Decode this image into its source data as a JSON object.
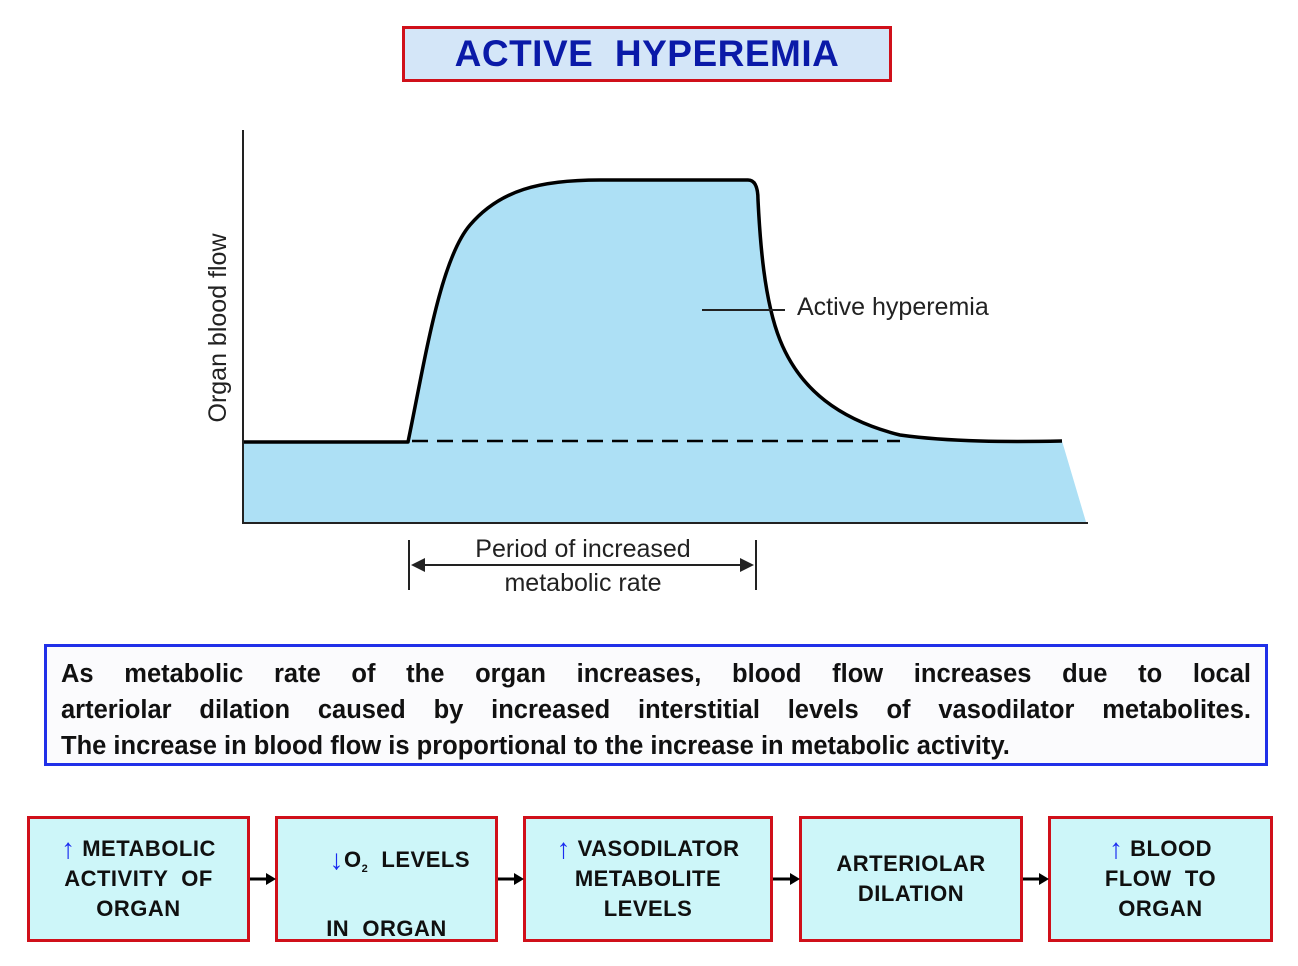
{
  "title": "ACTIVE  HYPEREMIA",
  "graph": {
    "y_axis_label": "Organ blood flow",
    "curve_label": "Active hyperemia",
    "period_label_line1": "Period of increased",
    "period_label_line2": "metabolic rate",
    "colors": {
      "fill": "#ade0f5",
      "line": "#000000"
    }
  },
  "description": {
    "line1": "As metabolic rate of the organ increases, blood flow increases due to local",
    "line2": "arteriolar dilation caused by increased interstitial levels of vasodilator metabolites.",
    "line3": "The increase in blood flow is proportional to the increase in metabolic activity."
  },
  "flow": {
    "box1": {
      "arrow": "↑",
      "line1": "METABOLIC",
      "line2": "ACTIVITY  OF",
      "line3": "ORGAN"
    },
    "box2": {
      "arrow": "↓",
      "o": "O",
      "sub": "2",
      "line1_rest": "  LEVELS",
      "line2": "IN  ORGAN"
    },
    "box3": {
      "arrow": "↑",
      "line1": "VASODILATOR",
      "line2": "METABOLITE",
      "line3": "LEVELS"
    },
    "box4": {
      "line1": "ARTERIOLAR",
      "line2": "DILATION"
    },
    "box5": {
      "arrow": "↑",
      "line1": "BLOOD",
      "line2": "FLOW  TO",
      "line3": "ORGAN"
    }
  },
  "colors": {
    "title_text": "#0a1aa8",
    "title_bg": "#d4e6f8",
    "box_border": "#d0101a",
    "desc_border": "#2030e8",
    "flow_bg": "#cdf6f9",
    "arrow_blue": "#1a2cf0"
  }
}
